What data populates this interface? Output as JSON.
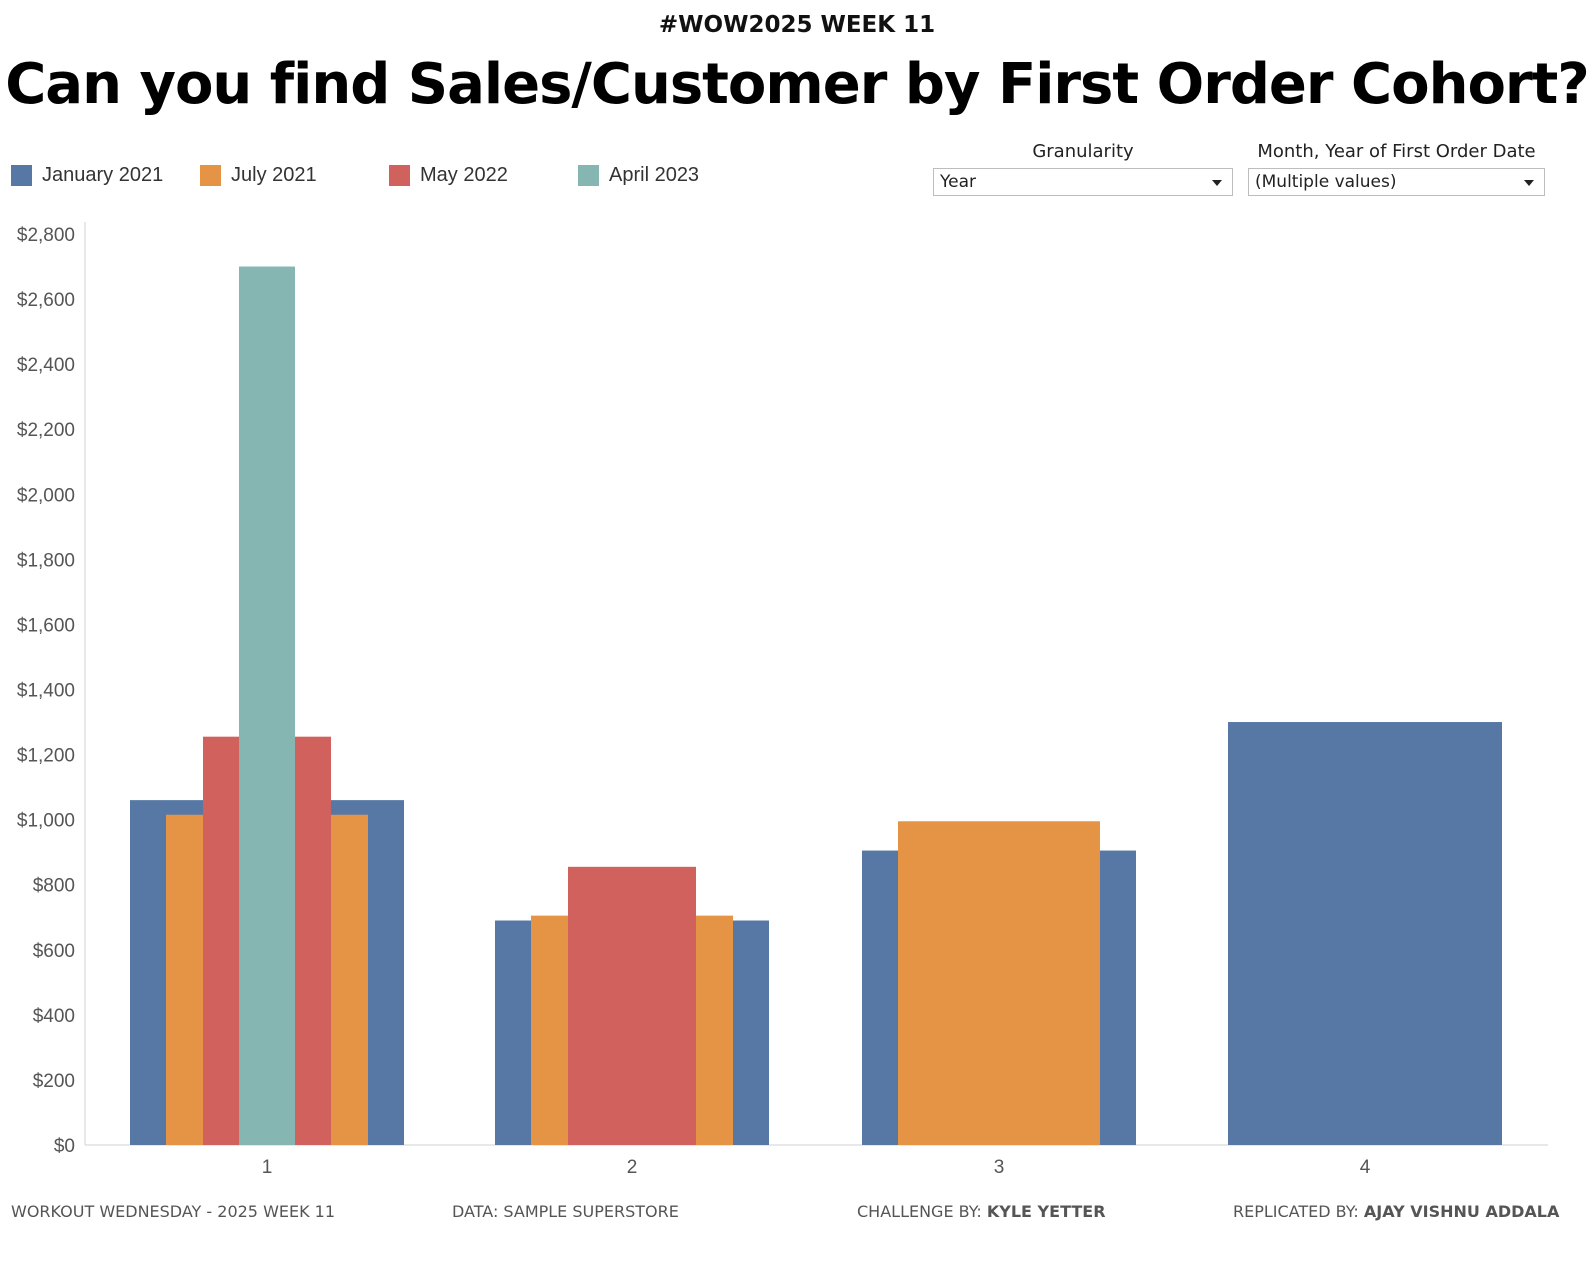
{
  "header": {
    "subtitle": "#WOW2025 WEEK 11",
    "title": "Can you find Sales/Customer by First Order Cohort?"
  },
  "legend": [
    {
      "label": "January 2021",
      "color": "#5778a4"
    },
    {
      "label": "July 2021",
      "color": "#e49444"
    },
    {
      "label": "May 2022",
      "color": "#d1615d"
    },
    {
      "label": "April 2023",
      "color": "#85b6b2"
    }
  ],
  "filters": {
    "granularity": {
      "label": "Granularity",
      "value": "Year"
    },
    "first_order": {
      "label": "Month, Year of First Order Date",
      "value": "(Multiple values)"
    }
  },
  "footer": {
    "workout": "WORKOUT WEDNESDAY - 2025 WEEK 11",
    "data": "DATA: SAMPLE SUPERSTORE",
    "challenge_prefix": "CHALLENGE BY: ",
    "challenge_name": "KYLE YETTER",
    "replicated_prefix": "REPLICATED BY: ",
    "replicated_name": "AJAY VISHNU ADDALA"
  },
  "chart_data": {
    "type": "bar",
    "categories": [
      "1",
      "2",
      "3",
      "4"
    ],
    "series": [
      {
        "name": "January 2021",
        "color": "#5778a4",
        "values": [
          1060,
          690,
          905,
          1300
        ]
      },
      {
        "name": "July 2021",
        "color": "#e49444",
        "values": [
          1015,
          705,
          995,
          null
        ]
      },
      {
        "name": "May 2022",
        "color": "#d1615d",
        "values": [
          1255,
          855,
          null,
          null
        ]
      },
      {
        "name": "April 2023",
        "color": "#85b6b2",
        "values": [
          2700,
          null,
          null,
          null
        ]
      }
    ],
    "ylim": [
      0,
      2840
    ],
    "yticks": [
      0,
      200,
      400,
      600,
      800,
      1000,
      1200,
      1400,
      1600,
      1800,
      2000,
      2200,
      2400,
      2600,
      2800
    ],
    "ytick_labels": [
      "$0",
      "$200",
      "$400",
      "$600",
      "$800",
      "$1,000",
      "$1,200",
      "$1,400",
      "$1,600",
      "$1,800",
      "$2,000",
      "$2,200",
      "$2,400",
      "$2,600",
      "$2,800"
    ],
    "bar_style": "overlapping nested bars, wider for earlier cohorts",
    "grid": false,
    "legend_position": "top-left"
  }
}
